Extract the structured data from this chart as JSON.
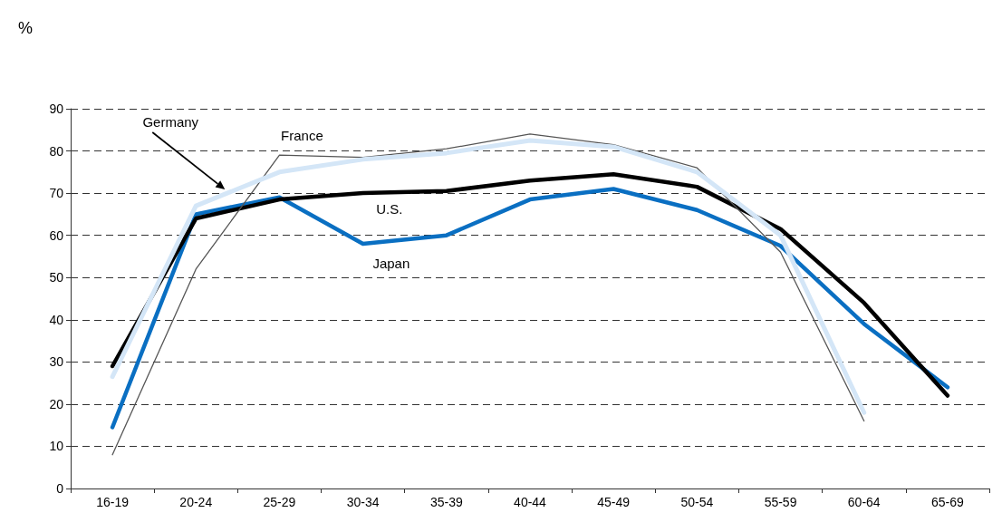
{
  "chart_data": {
    "type": "line",
    "ylabel": "%",
    "categories": [
      "16-19",
      "20-24",
      "25-29",
      "30-34",
      "35-39",
      "40-44",
      "45-49",
      "50-54",
      "55-59",
      "60-64",
      "65-69"
    ],
    "series": [
      {
        "name": "Germany",
        "color": "#d4e6f7",
        "values": [
          26.5,
          67,
          75,
          78,
          79.5,
          82.5,
          81,
          75,
          60,
          18,
          null
        ]
      },
      {
        "name": "France",
        "color": "#555555",
        "values": [
          8,
          52,
          79,
          78.5,
          80.5,
          84,
          81.5,
          76,
          56,
          16,
          null
        ]
      },
      {
        "name": "U.S.",
        "color": "#000000",
        "values": [
          29,
          64,
          68.5,
          70,
          70.5,
          73,
          74.5,
          71.5,
          61.5,
          44,
          22
        ]
      },
      {
        "name": "Japan",
        "color": "#0a6fc2",
        "values": [
          14.5,
          65,
          69,
          58,
          60,
          68.5,
          71,
          66,
          57.5,
          39,
          24
        ]
      }
    ],
    "ylim": [
      0,
      90
    ],
    "yticks": [
      0,
      10,
      20,
      30,
      40,
      50,
      60,
      70,
      80,
      90
    ],
    "grid": "y",
    "legend": false,
    "marker": "none",
    "line_style": "solid"
  }
}
